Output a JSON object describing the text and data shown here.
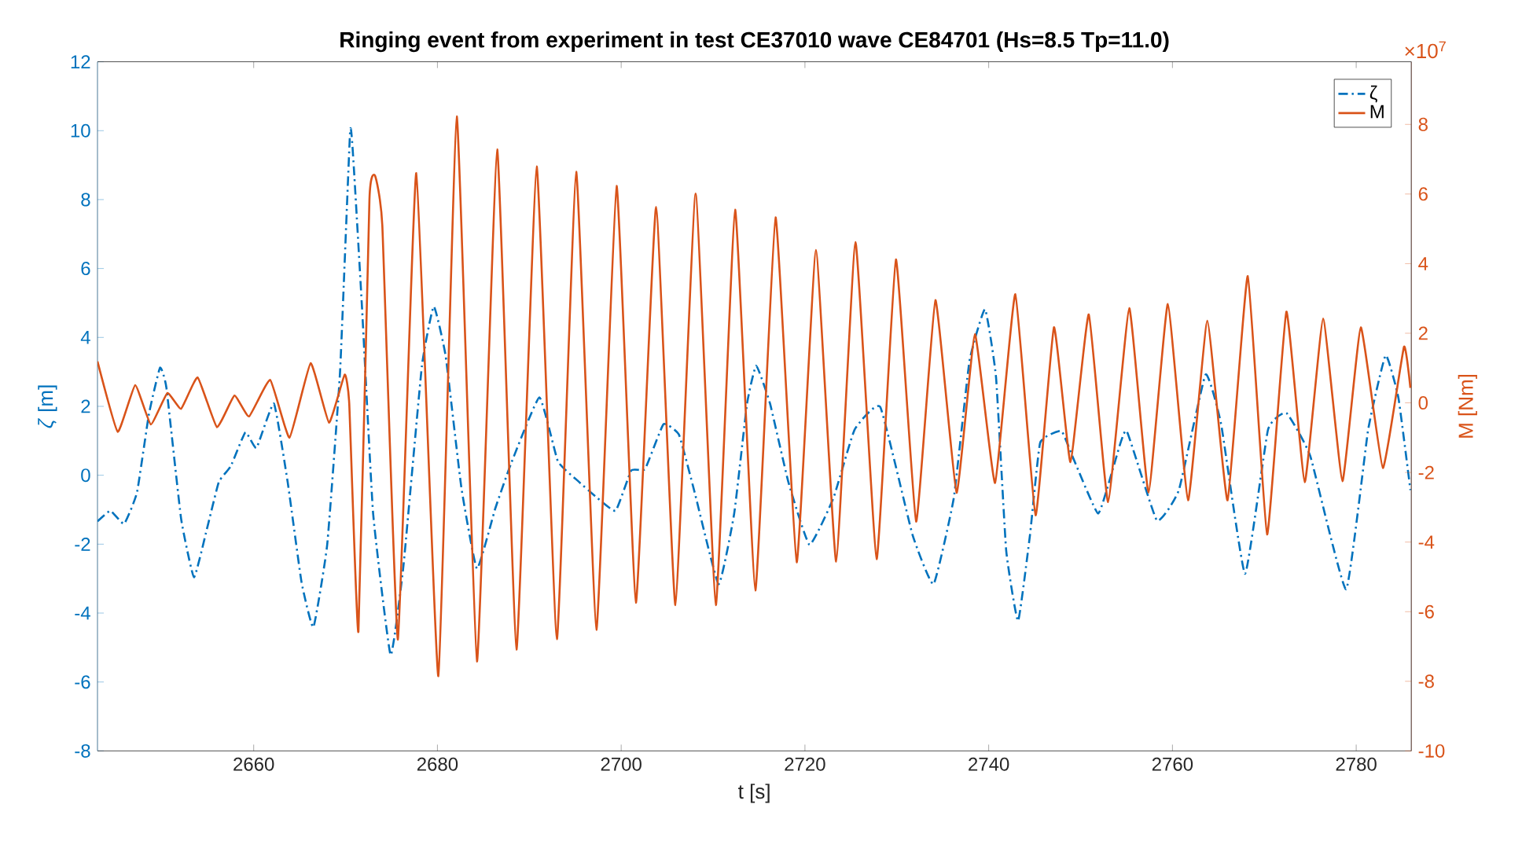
{
  "chart_data": {
    "type": "line",
    "title": "Ringing event from experiment in test CE37010 wave CE84701 (Hs=8.5 Tp=11.0)",
    "xlabel": "t [s]",
    "ylabel": "*ζ* [m]",
    "y2label": "M [Nm]",
    "annotations": [
      "×10$^{7}$"
    ],
    "xlim": [
      2643,
      2786
    ],
    "xticks": [
      2660,
      2680,
      2700,
      2720,
      2740,
      2760,
      2780
    ],
    "ylim": [
      -8,
      12
    ],
    "yticks": [
      -8,
      -6,
      -4,
      -2,
      0,
      2,
      4,
      6,
      8,
      10,
      12
    ],
    "y2lim": [
      -10,
      9.8
    ],
    "y2ticks": [
      -10,
      -8,
      -6,
      -4,
      -2,
      0,
      2,
      4,
      6,
      8
    ],
    "legend": "top right",
    "series": [
      {
        "name": "ζ",
        "color": "#0072bd",
        "line_style": "dashdot",
        "x": [
          2643.0,
          2644.4,
          2645.9,
          2647.3,
          2648.6,
          2649.8,
          2650.5,
          2652.1,
          2653.5,
          2654.9,
          2656.2,
          2657.5,
          2659.1,
          2660.3,
          2662.2,
          2663.7,
          2665.2,
          2666.5,
          2668.0,
          2669.4,
          2670.5,
          2670.9,
          2671.8,
          2673.0,
          2674.9,
          2676.3,
          2678.3,
          2679.6,
          2680.9,
          2682.6,
          2684.3,
          2686.3,
          2688.0,
          2691.1,
          2693.1,
          2695.1,
          2697.4,
          2699.4,
          2701.1,
          2702.6,
          2704.6,
          2706.3,
          2708.0,
          2710.6,
          2712.3,
          2713.7,
          2714.7,
          2716.2,
          2718.2,
          2720.5,
          2723.1,
          2725.4,
          2728.2,
          2731.7,
          2734.0,
          2736.2,
          2737.9,
          2739.6,
          2740.8,
          2741.9,
          2743.2,
          2744.5,
          2745.6,
          2747.9,
          2749.1,
          2751.9,
          2753.6,
          2755.0,
          2758.3,
          2760.7,
          2763.6,
          2765.3,
          2767.9,
          2770.4,
          2772.4,
          2775.0,
          2778.9,
          2781.3,
          2783.2,
          2784.6,
          2785.9
        ],
        "values": [
          -1.34,
          -1.03,
          -1.41,
          -0.5,
          1.78,
          3.12,
          2.54,
          -1.26,
          -2.96,
          -1.57,
          -0.2,
          0.26,
          1.25,
          0.79,
          2.08,
          -0.2,
          -3.09,
          -4.41,
          -2.02,
          3.0,
          10.0,
          8.93,
          4.82,
          -1.11,
          -5.22,
          -2.63,
          3.15,
          4.9,
          3.45,
          -0.35,
          -2.71,
          -0.96,
          0.33,
          2.26,
          0.41,
          -0.12,
          -0.66,
          -1.03,
          0.14,
          0.18,
          1.48,
          1.17,
          -0.5,
          -3.16,
          -1.11,
          2.08,
          3.18,
          2.08,
          -0.2,
          -2.02,
          -0.66,
          1.32,
          1.98,
          -1.72,
          -3.16,
          -0.66,
          3.3,
          4.82,
          2.84,
          -2.17,
          -4.23,
          -1.72,
          0.94,
          1.29,
          0.56,
          -1.11,
          0.26,
          1.29,
          -1.31,
          -0.43,
          2.92,
          1.48,
          -2.86,
          1.32,
          1.81,
          0.56,
          -3.31,
          1.32,
          3.48,
          2.24,
          -0.43
        ]
      },
      {
        "name": "M",
        "color": "#d95319",
        "line_style": "solid",
        "axis": "y2",
        "x": [
          2643.0,
          2645.2,
          2647.1,
          2648.8,
          2650.6,
          2652.1,
          2653.9,
          2656.0,
          2657.9,
          2659.5,
          2661.8,
          2663.9,
          2666.2,
          2668.2,
          2669.9,
          2670.4,
          2671.4,
          2672.6,
          2673.2,
          2674.0,
          2675.7,
          2677.7,
          2680.1,
          2682.1,
          2684.3,
          2686.5,
          2688.6,
          2690.8,
          2693.0,
          2695.1,
          2697.3,
          2699.5,
          2701.6,
          2703.8,
          2705.9,
          2708.1,
          2710.3,
          2712.4,
          2714.6,
          2716.8,
          2719.1,
          2721.2,
          2723.4,
          2725.5,
          2727.8,
          2729.9,
          2732.1,
          2734.2,
          2736.5,
          2738.5,
          2740.7,
          2742.9,
          2745.1,
          2747.1,
          2748.9,
          2750.9,
          2753.0,
          2755.3,
          2757.4,
          2759.5,
          2761.7,
          2763.8,
          2766.0,
          2768.2,
          2770.3,
          2772.4,
          2774.4,
          2776.4,
          2778.5,
          2780.5,
          2782.9,
          2785.2,
          2785.9
        ],
        "values": [
          1.19,
          -0.83,
          0.51,
          -0.62,
          0.28,
          -0.17,
          0.73,
          -0.7,
          0.21,
          -0.39,
          0.66,
          -1.0,
          1.14,
          -0.57,
          0.81,
          -0.02,
          -6.57,
          5.85,
          6.53,
          5.1,
          -6.8,
          6.6,
          -7.85,
          8.23,
          -7.43,
          7.28,
          -7.09,
          6.79,
          -6.79,
          6.64,
          -6.52,
          6.23,
          -5.74,
          5.63,
          -5.81,
          6.01,
          -5.81,
          5.55,
          -5.39,
          5.33,
          -4.58,
          4.39,
          -4.56,
          4.62,
          -4.49,
          4.12,
          -3.41,
          2.95,
          -2.58,
          1.97,
          -2.3,
          3.12,
          -3.23,
          2.17,
          -1.7,
          2.54,
          -2.85,
          2.72,
          -2.58,
          2.84,
          -2.8,
          2.36,
          -2.8,
          3.64,
          -3.78,
          2.62,
          -2.28,
          2.42,
          -2.25,
          2.17,
          -1.87,
          1.61,
          0.43
        ]
      }
    ]
  }
}
